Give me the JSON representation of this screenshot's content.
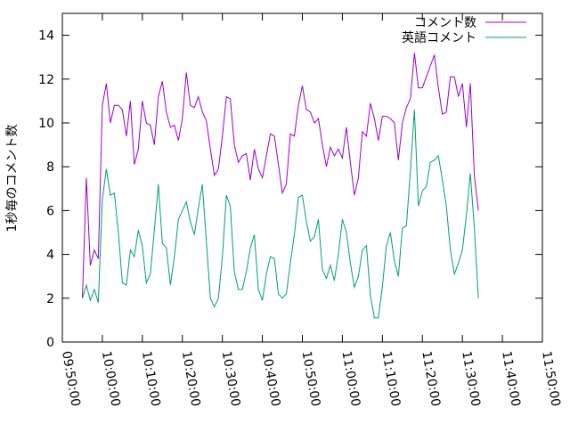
{
  "chart_data": {
    "type": "line",
    "title": "",
    "xlabel": "",
    "ylabel": "1秒毎のコメント数",
    "xlim": [
      "09:50:00",
      "11:50:00"
    ],
    "ylim": [
      0,
      15
    ],
    "grid": false,
    "legend": "top-right",
    "y_ticks": [
      0,
      2,
      4,
      6,
      8,
      10,
      12,
      14
    ],
    "x_ticks": [
      "09:50:00",
      "10:00:00",
      "10:10:00",
      "10:20:00",
      "10:30:00",
      "10:40:00",
      "10:50:00",
      "11:00:00",
      "11:10:00",
      "11:20:00",
      "11:30:00",
      "11:40:00",
      "11:50:00"
    ],
    "series": [
      {
        "name": "コメント数",
        "color": "#9400d3",
        "points": [
          [
            "09:55:00",
            2.0
          ],
          [
            "09:56:00",
            7.5
          ],
          [
            "09:57:00",
            3.5
          ],
          [
            "09:58:00",
            4.2
          ],
          [
            "09:59:00",
            3.8
          ],
          [
            "10:00:00",
            10.8
          ],
          [
            "10:01:00",
            11.8
          ],
          [
            "10:02:00",
            10.0
          ],
          [
            "10:03:00",
            10.8
          ],
          [
            "10:04:00",
            10.8
          ],
          [
            "10:05:00",
            10.6
          ],
          [
            "10:06:00",
            9.4
          ],
          [
            "10:07:00",
            11.0
          ],
          [
            "10:08:00",
            8.1
          ],
          [
            "10:09:00",
            8.8
          ],
          [
            "10:10:00",
            11.0
          ],
          [
            "10:11:00",
            10.0
          ],
          [
            "10:12:00",
            9.9
          ],
          [
            "10:13:00",
            9.0
          ],
          [
            "10:14:00",
            11.2
          ],
          [
            "10:15:00",
            11.9
          ],
          [
            "10:16:00",
            10.5
          ],
          [
            "10:17:00",
            9.8
          ],
          [
            "10:18:00",
            9.9
          ],
          [
            "10:19:00",
            9.2
          ],
          [
            "10:20:00",
            10.2
          ],
          [
            "10:21:00",
            12.3
          ],
          [
            "10:22:00",
            10.8
          ],
          [
            "10:23:00",
            10.7
          ],
          [
            "10:24:00",
            11.2
          ],
          [
            "10:25:00",
            10.5
          ],
          [
            "10:26:00",
            10.1
          ],
          [
            "10:27:00",
            8.8
          ],
          [
            "10:28:00",
            7.6
          ],
          [
            "10:29:00",
            7.9
          ],
          [
            "10:30:00",
            9.4
          ],
          [
            "10:31:00",
            11.2
          ],
          [
            "10:32:00",
            11.1
          ],
          [
            "10:33:00",
            9.0
          ],
          [
            "10:34:00",
            8.2
          ],
          [
            "10:35:00",
            8.5
          ],
          [
            "10:36:00",
            8.6
          ],
          [
            "10:37:00",
            7.4
          ],
          [
            "10:38:00",
            8.8
          ],
          [
            "10:39:00",
            7.9
          ],
          [
            "10:40:00",
            7.5
          ],
          [
            "10:41:00",
            8.5
          ],
          [
            "10:42:00",
            9.5
          ],
          [
            "10:43:00",
            9.4
          ],
          [
            "10:44:00",
            8.1
          ],
          [
            "10:45:00",
            6.8
          ],
          [
            "10:46:00",
            7.2
          ],
          [
            "10:47:00",
            9.5
          ],
          [
            "10:48:00",
            9.4
          ],
          [
            "10:49:00",
            10.8
          ],
          [
            "10:50:00",
            11.7
          ],
          [
            "10:51:00",
            10.6
          ],
          [
            "10:52:00",
            10.5
          ],
          [
            "10:53:00",
            10.0
          ],
          [
            "10:54:00",
            10.2
          ],
          [
            "10:55:00",
            9.0
          ],
          [
            "10:56:00",
            8.0
          ],
          [
            "10:57:00",
            8.9
          ],
          [
            "10:58:00",
            8.5
          ],
          [
            "10:59:00",
            8.8
          ],
          [
            "11:00:00",
            8.4
          ],
          [
            "11:01:00",
            9.8
          ],
          [
            "11:02:00",
            8.2
          ],
          [
            "11:03:00",
            6.7
          ],
          [
            "11:04:00",
            7.5
          ],
          [
            "11:05:00",
            9.6
          ],
          [
            "11:06:00",
            9.4
          ],
          [
            "11:07:00",
            10.9
          ],
          [
            "11:08:00",
            10.2
          ],
          [
            "11:09:00",
            9.2
          ],
          [
            "11:10:00",
            10.3
          ],
          [
            "11:11:00",
            10.3
          ],
          [
            "11:12:00",
            10.2
          ],
          [
            "11:13:00",
            10.0
          ],
          [
            "11:14:00",
            8.3
          ],
          [
            "11:15:00",
            10.0
          ],
          [
            "11:16:00",
            10.7
          ],
          [
            "11:17:00",
            11.1
          ],
          [
            "11:18:00",
            13.2
          ],
          [
            "11:19:00",
            11.6
          ],
          [
            "11:20:00",
            11.6
          ],
          [
            "11:21:00",
            12.1
          ],
          [
            "11:22:00",
            12.6
          ],
          [
            "11:23:00",
            13.1
          ],
          [
            "11:24:00",
            11.6
          ],
          [
            "11:25:00",
            10.4
          ],
          [
            "11:26:00",
            10.5
          ],
          [
            "11:27:00",
            12.1
          ],
          [
            "11:28:00",
            12.1
          ],
          [
            "11:29:00",
            11.2
          ],
          [
            "11:30:00",
            11.8
          ],
          [
            "11:31:00",
            9.8
          ],
          [
            "11:32:00",
            11.8
          ],
          [
            "11:33:00",
            7.6
          ],
          [
            "11:34:00",
            6.0
          ]
        ]
      },
      {
        "name": "英語コメント",
        "color": "#009e73",
        "points": [
          [
            "09:55:00",
            2.0
          ],
          [
            "09:56:00",
            2.6
          ],
          [
            "09:57:00",
            1.9
          ],
          [
            "09:58:00",
            2.4
          ],
          [
            "09:59:00",
            1.8
          ],
          [
            "10:00:00",
            6.5
          ],
          [
            "10:01:00",
            7.9
          ],
          [
            "10:02:00",
            6.7
          ],
          [
            "10:03:00",
            6.8
          ],
          [
            "10:04:00",
            5.0
          ],
          [
            "10:05:00",
            2.7
          ],
          [
            "10:06:00",
            2.6
          ],
          [
            "10:07:00",
            4.2
          ],
          [
            "10:08:00",
            3.9
          ],
          [
            "10:09:00",
            5.1
          ],
          [
            "10:10:00",
            4.4
          ],
          [
            "10:11:00",
            2.7
          ],
          [
            "10:12:00",
            3.1
          ],
          [
            "10:13:00",
            5.1
          ],
          [
            "10:14:00",
            7.2
          ],
          [
            "10:15:00",
            4.5
          ],
          [
            "10:16:00",
            4.3
          ],
          [
            "10:17:00",
            2.6
          ],
          [
            "10:18:00",
            3.9
          ],
          [
            "10:19:00",
            5.6
          ],
          [
            "10:20:00",
            6.0
          ],
          [
            "10:21:00",
            6.4
          ],
          [
            "10:22:00",
            5.5
          ],
          [
            "10:23:00",
            4.9
          ],
          [
            "10:24:00",
            6.1
          ],
          [
            "10:25:00",
            7.2
          ],
          [
            "10:26:00",
            4.6
          ],
          [
            "10:27:00",
            2.0
          ],
          [
            "10:28:00",
            1.6
          ],
          [
            "10:29:00",
            2.0
          ],
          [
            "10:30:00",
            3.9
          ],
          [
            "10:31:00",
            6.7
          ],
          [
            "10:32:00",
            6.2
          ],
          [
            "10:33:00",
            3.2
          ],
          [
            "10:34:00",
            2.4
          ],
          [
            "10:35:00",
            2.4
          ],
          [
            "10:36:00",
            3.2
          ],
          [
            "10:37:00",
            4.3
          ],
          [
            "10:38:00",
            4.9
          ],
          [
            "10:39:00",
            2.4
          ],
          [
            "10:40:00",
            1.9
          ],
          [
            "10:41:00",
            3.1
          ],
          [
            "10:42:00",
            3.9
          ],
          [
            "10:43:00",
            3.8
          ],
          [
            "10:44:00",
            2.2
          ],
          [
            "10:45:00",
            2.0
          ],
          [
            "10:46:00",
            2.2
          ],
          [
            "10:47:00",
            3.6
          ],
          [
            "10:48:00",
            4.9
          ],
          [
            "10:49:00",
            6.6
          ],
          [
            "10:50:00",
            6.7
          ],
          [
            "10:51:00",
            5.5
          ],
          [
            "10:52:00",
            4.6
          ],
          [
            "10:53:00",
            4.8
          ],
          [
            "10:54:00",
            5.6
          ],
          [
            "10:55:00",
            3.3
          ],
          [
            "10:56:00",
            2.9
          ],
          [
            "10:57:00",
            3.5
          ],
          [
            "10:58:00",
            2.8
          ],
          [
            "10:59:00",
            4.0
          ],
          [
            "11:00:00",
            5.6
          ],
          [
            "11:01:00",
            5.0
          ],
          [
            "11:02:00",
            3.6
          ],
          [
            "11:03:00",
            2.5
          ],
          [
            "11:04:00",
            3.0
          ],
          [
            "11:05:00",
            4.2
          ],
          [
            "11:06:00",
            4.4
          ],
          [
            "11:07:00",
            2.1
          ],
          [
            "11:08:00",
            1.1
          ],
          [
            "11:09:00",
            1.1
          ],
          [
            "11:10:00",
            2.5
          ],
          [
            "11:11:00",
            4.4
          ],
          [
            "11:12:00",
            5.0
          ],
          [
            "11:13:00",
            3.7
          ],
          [
            "11:14:00",
            3.0
          ],
          [
            "11:15:00",
            5.2
          ],
          [
            "11:16:00",
            5.3
          ],
          [
            "11:17:00",
            7.8
          ],
          [
            "11:18:00",
            10.6
          ],
          [
            "11:19:00",
            6.2
          ],
          [
            "11:20:00",
            6.9
          ],
          [
            "11:21:00",
            7.1
          ],
          [
            "11:22:00",
            8.2
          ],
          [
            "11:23:00",
            8.3
          ],
          [
            "11:24:00",
            8.5
          ],
          [
            "11:25:00",
            7.4
          ],
          [
            "11:26:00",
            6.2
          ],
          [
            "11:27:00",
            4.2
          ],
          [
            "11:28:00",
            3.1
          ],
          [
            "11:29:00",
            3.6
          ],
          [
            "11:30:00",
            4.2
          ],
          [
            "11:31:00",
            5.8
          ],
          [
            "11:32:00",
            7.7
          ],
          [
            "11:33:00",
            5.2
          ],
          [
            "11:34:00",
            2.0
          ]
        ]
      }
    ]
  }
}
